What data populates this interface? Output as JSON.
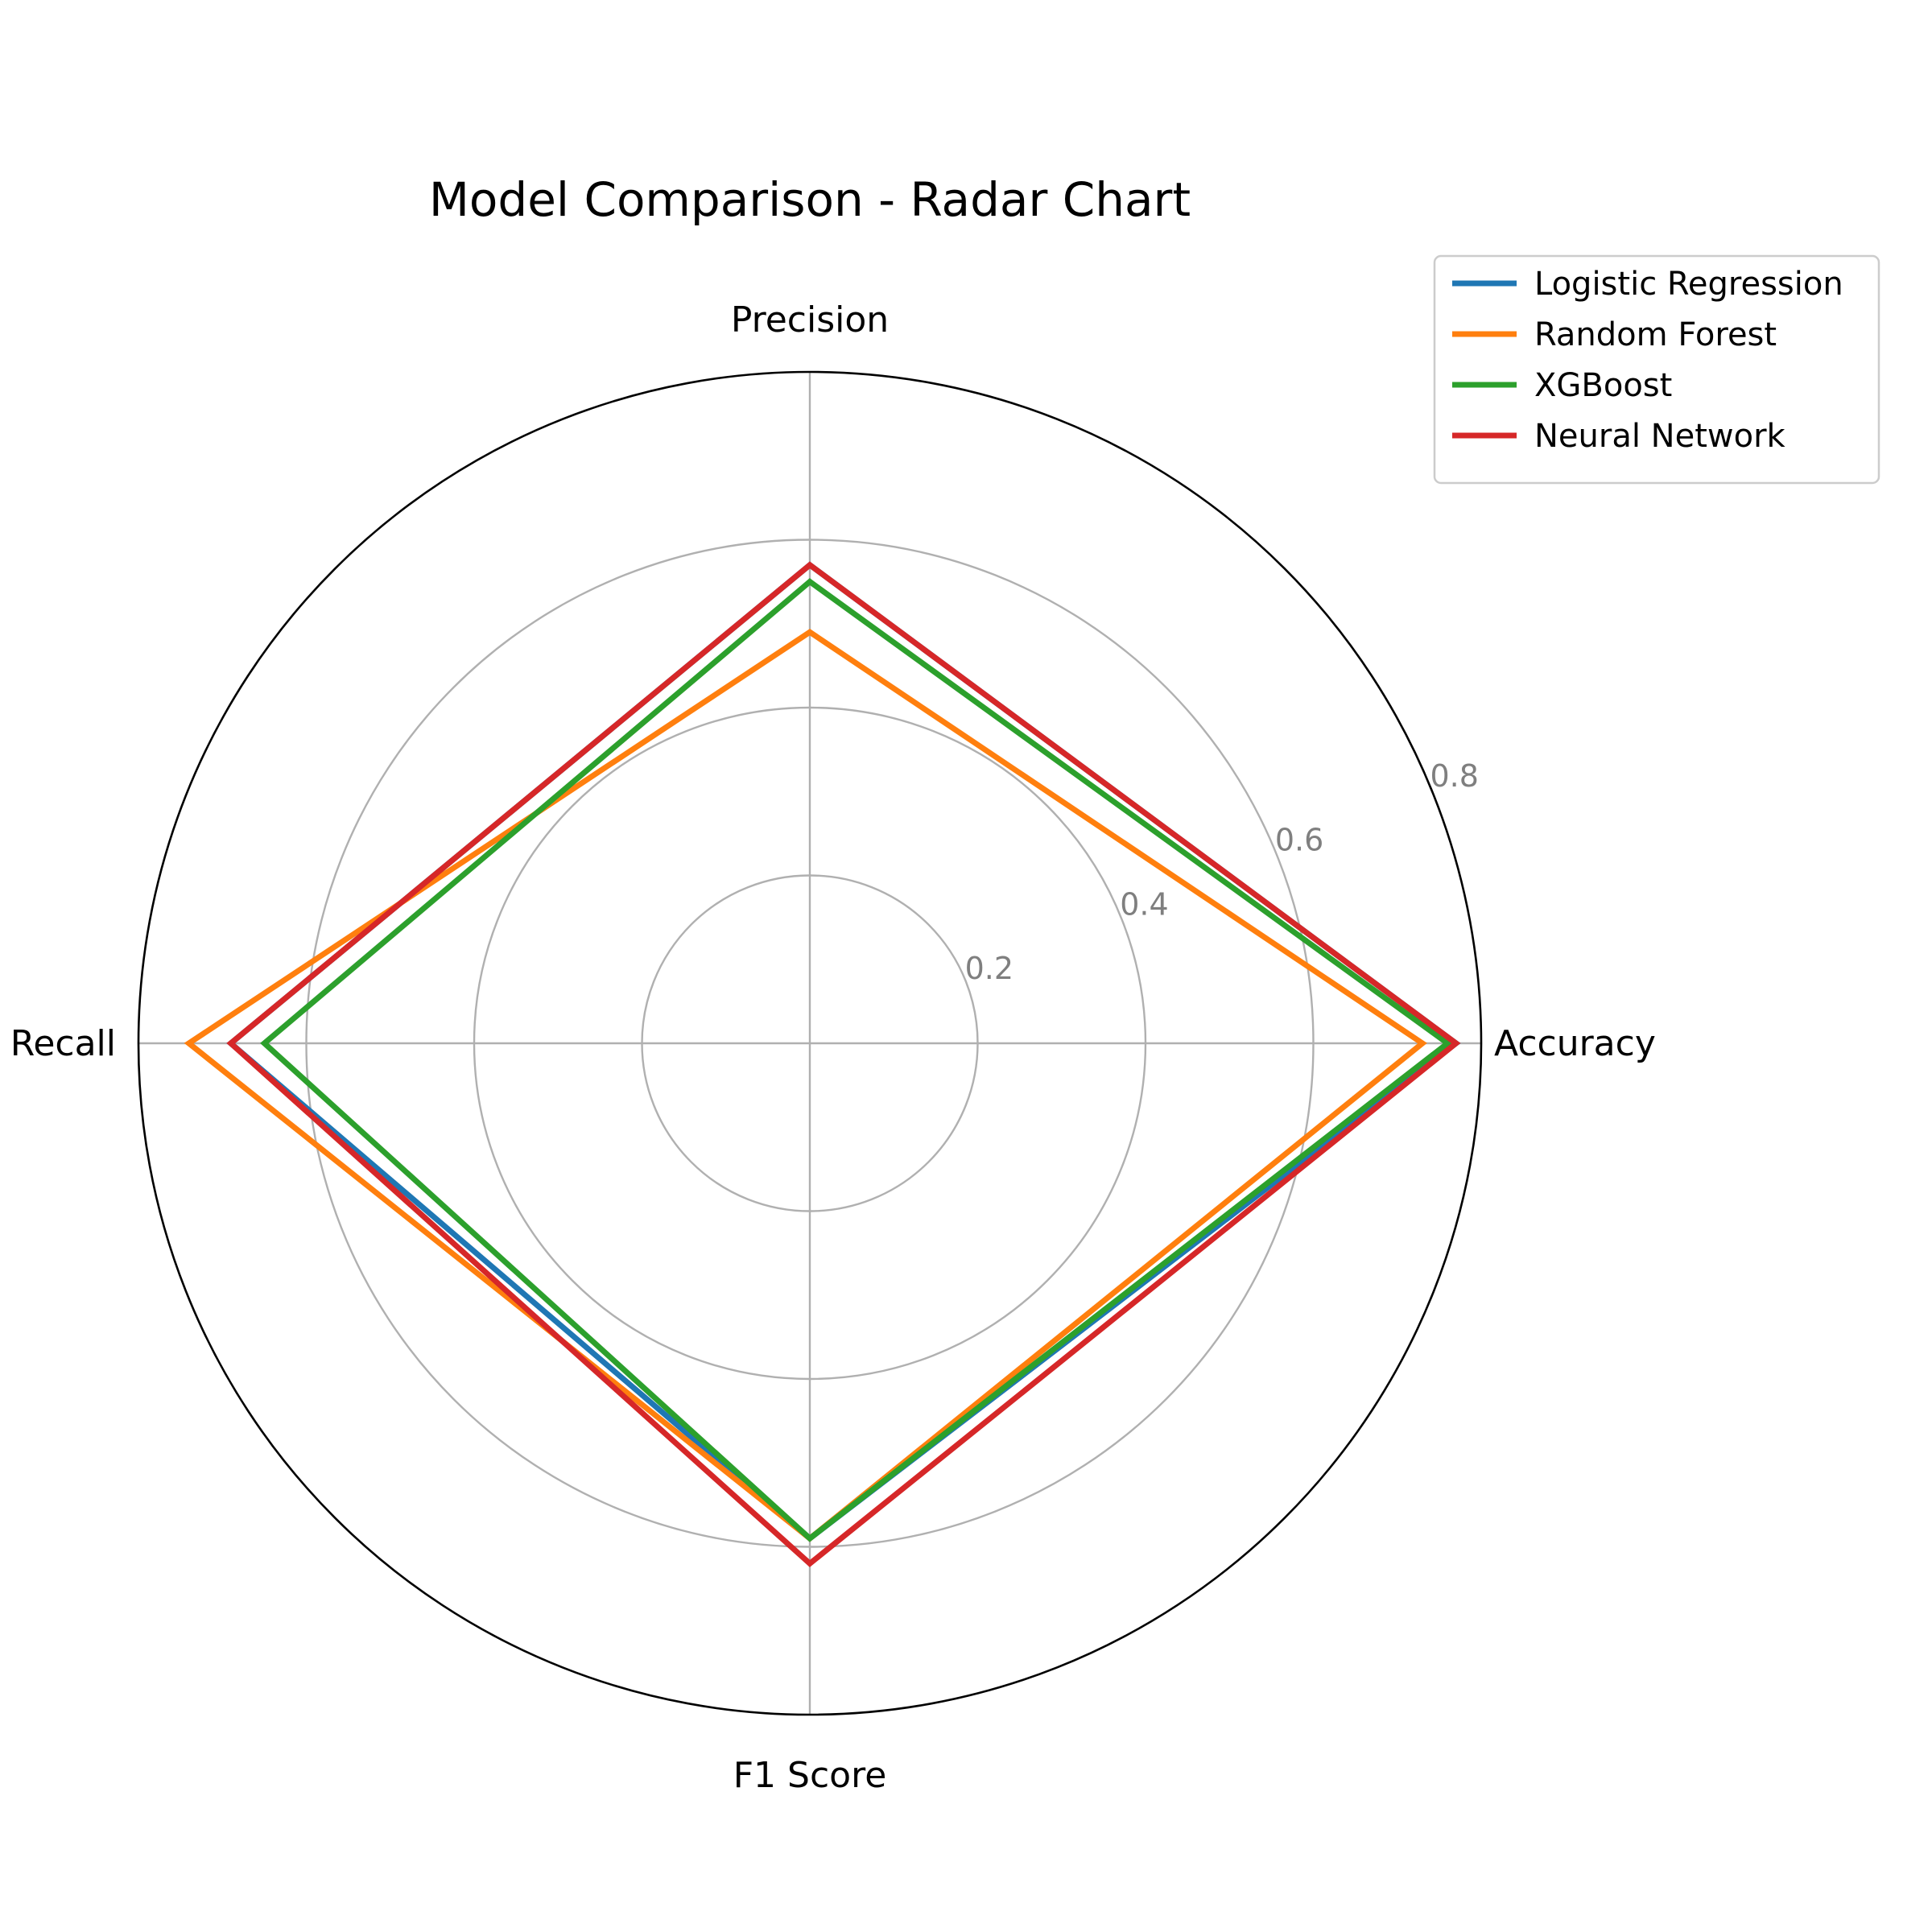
{
  "chart_data": {
    "type": "radar",
    "title": "Model Comparison - Radar Chart",
    "axes": [
      "Accuracy",
      "Precision",
      "Recall",
      "F1 Score"
    ],
    "rlim": [
      0,
      0.8
    ],
    "rticks": [
      0.2,
      0.4,
      0.6,
      0.8
    ],
    "rtick_labels": [
      "0.2",
      "0.4",
      "0.6",
      "0.8"
    ],
    "grid": true,
    "legend": "top-right",
    "series": [
      {
        "name": "Logistic Regression",
        "color": "#1f77b4",
        "values": [
          0.77,
          0.57,
          0.69,
          0.59
        ]
      },
      {
        "name": "Random Forest",
        "color": "#ff7f0e",
        "values": [
          0.73,
          0.49,
          0.74,
          0.59
        ]
      },
      {
        "name": "XGBoost",
        "color": "#2ca02c",
        "values": [
          0.76,
          0.55,
          0.65,
          0.59
        ]
      },
      {
        "name": "Neural Network",
        "color": "#d62728",
        "values": [
          0.77,
          0.57,
          0.69,
          0.62
        ]
      }
    ]
  }
}
